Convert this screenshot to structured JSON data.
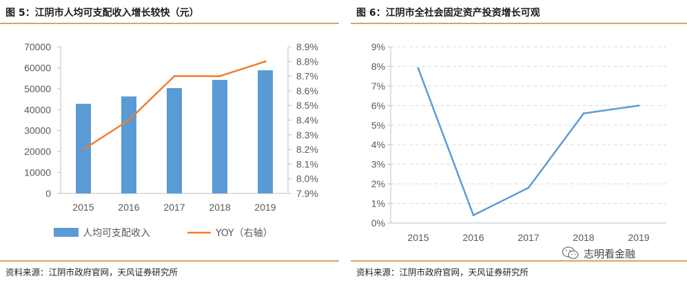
{
  "watermark": {
    "text": "志明看金融",
    "icon": "wechat-chat-bubbles-icon"
  },
  "panels": [
    {
      "title": "图 5：江阴市人均可支配收入增长较快（元）",
      "source": "资料来源：江阴市政府官网，天风证券研究所"
    },
    {
      "title": "图 6：江阴市全社会固定资产投资增长可观",
      "source": "资料来源：江阴市政府官网，天风证券研究所"
    }
  ],
  "chart_data": [
    {
      "type": "bar+line",
      "categories": [
        "2015",
        "2016",
        "2017",
        "2018",
        "2019"
      ],
      "series": [
        {
          "name": "人均可支配收入",
          "type": "bar",
          "axis": "left",
          "color": "#5b9bd5",
          "values": [
            42800,
            46300,
            50300,
            54200,
            58800
          ]
        },
        {
          "name": "YOY（右轴）",
          "type": "line",
          "axis": "right",
          "color": "#ed7d31",
          "values": [
            8.2,
            8.4,
            8.7,
            8.7,
            8.8
          ]
        }
      ],
      "ylim_left": [
        0,
        70000
      ],
      "yticks_left": [
        "0",
        "10000",
        "20000",
        "30000",
        "40000",
        "50000",
        "60000",
        "70000"
      ],
      "ylim_right": [
        7.9,
        8.9
      ],
      "yticks_right": [
        "7.9%",
        "8.0%",
        "8.1%",
        "8.2%",
        "8.3%",
        "8.4%",
        "8.5%",
        "8.6%",
        "8.7%",
        "8.8%",
        "8.9%"
      ],
      "legend": "bottom",
      "grid": false
    },
    {
      "type": "line",
      "categories": [
        "2015",
        "2016",
        "2017",
        "2018",
        "2019"
      ],
      "series": [
        {
          "type": "line",
          "color": "#5b9bd5",
          "values": [
            7.9,
            0.4,
            1.8,
            5.6,
            6.0
          ]
        }
      ],
      "ylim": [
        0,
        9
      ],
      "yticks": [
        "0%",
        "1%",
        "2%",
        "3%",
        "4%",
        "5%",
        "6%",
        "7%",
        "8%",
        "9%"
      ],
      "grid": true,
      "legend": "none"
    }
  ]
}
